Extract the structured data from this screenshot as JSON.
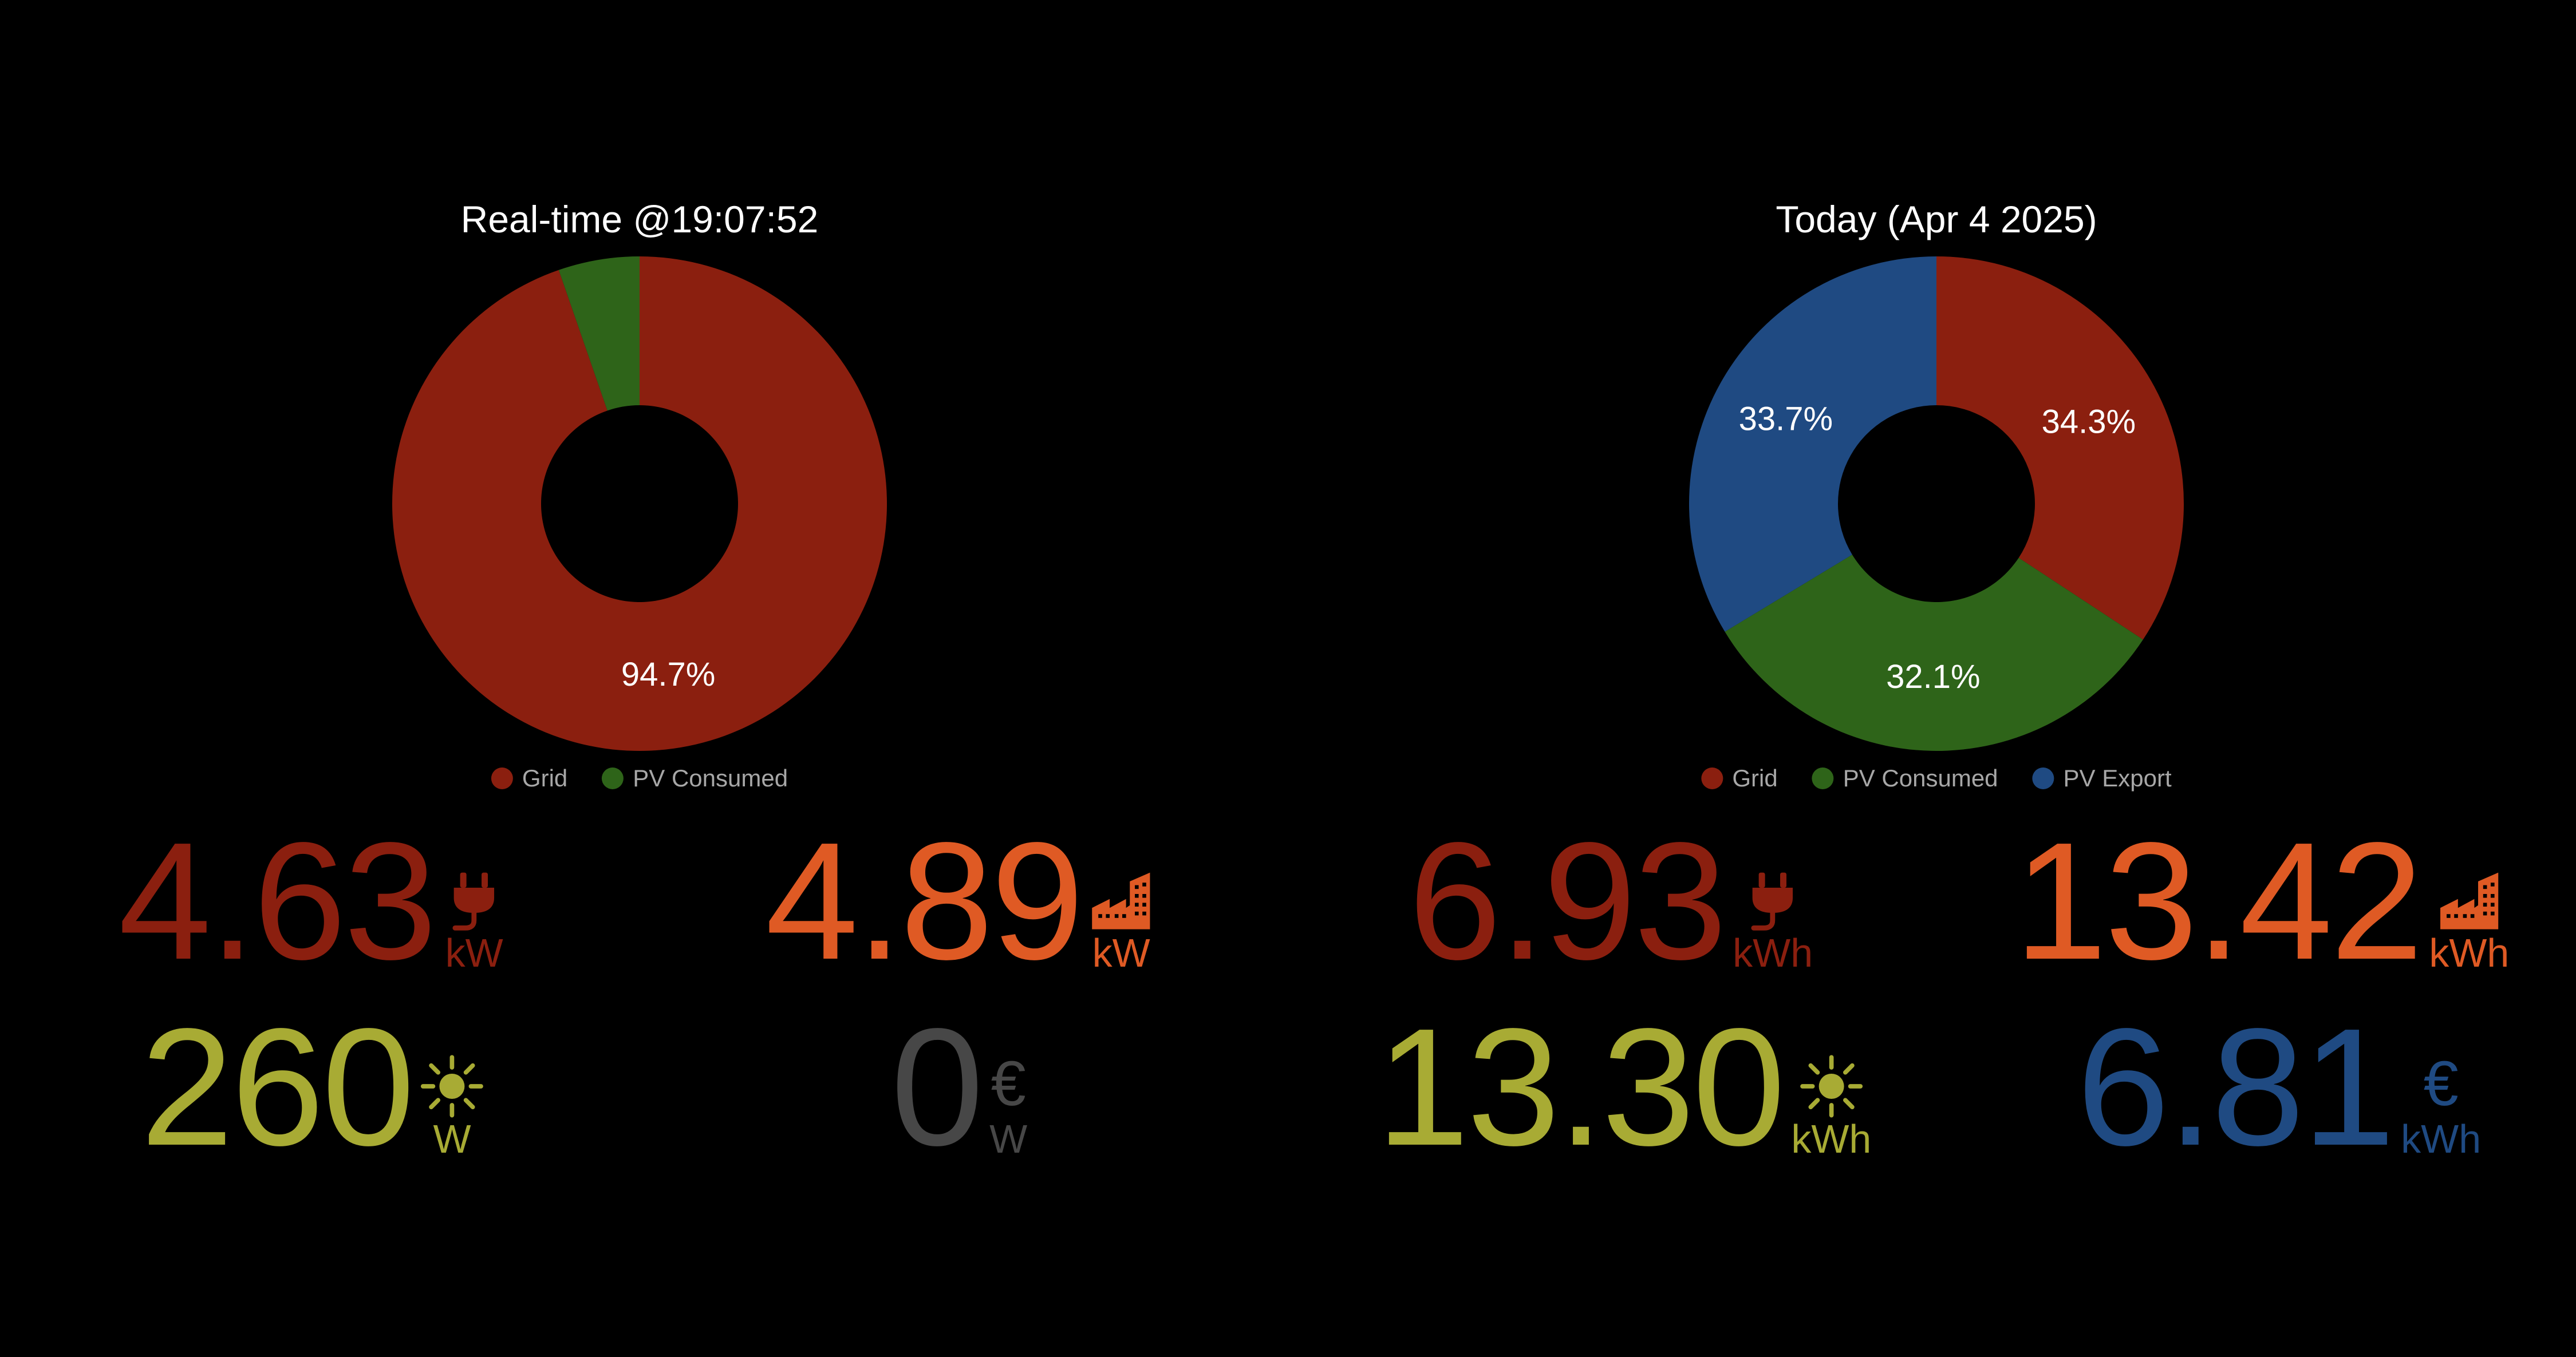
{
  "colors": {
    "grid": "#8b1f0f",
    "pv_consumed": "#2e6419",
    "pv_export": "#1f4a82",
    "consumption": "#df5a24",
    "solar": "#a8ab34",
    "neutral": "#474747"
  },
  "realtime": {
    "title": "Real-time @19:07:52",
    "legend": [
      {
        "label": "Grid",
        "color": "#8b1f0f"
      },
      {
        "label": "PV Consumed",
        "color": "#2e6419"
      }
    ],
    "metrics": {
      "grid": {
        "value": "4.63",
        "unit": "kW",
        "icon": "plug-icon",
        "color": "#8b1f0f"
      },
      "consumption": {
        "value": "4.89",
        "unit": "kW",
        "icon": "building-icon",
        "color": "#df5a24"
      },
      "solar": {
        "value": "260",
        "unit": "W",
        "icon": "sun-icon",
        "color": "#a8ab34"
      },
      "export": {
        "value": "0",
        "unit": "W",
        "icon": "euro-icon",
        "symbol": "€",
        "color": "#474747"
      }
    }
  },
  "today": {
    "title": "Today (Apr 4 2025)",
    "legend": [
      {
        "label": "Grid",
        "color": "#8b1f0f"
      },
      {
        "label": "PV Consumed",
        "color": "#2e6419"
      },
      {
        "label": "PV Export",
        "color": "#1f4a82"
      }
    ],
    "metrics": {
      "grid": {
        "value": "6.93",
        "unit": "kWh",
        "icon": "plug-icon",
        "color": "#8b1f0f"
      },
      "consumption": {
        "value": "13.42",
        "unit": "kWh",
        "icon": "building-icon",
        "color": "#df5a24"
      },
      "solar": {
        "value": "13.30",
        "unit": "kWh",
        "icon": "sun-icon",
        "color": "#a8ab34"
      },
      "export": {
        "value": "6.81",
        "unit": "kWh",
        "icon": "euro-icon",
        "symbol": "€",
        "color": "#1f4a82"
      }
    }
  },
  "chart_data": [
    {
      "type": "pie",
      "title": "Real-time @19:07:52",
      "categories": [
        "Grid",
        "PV Consumed"
      ],
      "values": [
        94.7,
        5.3
      ],
      "labels": [
        "94.7%",
        ""
      ],
      "colors": [
        "#8b1f0f",
        "#2e6419"
      ],
      "legend": "bottom"
    },
    {
      "type": "pie",
      "title": "Today (Apr 4 2025)",
      "categories": [
        "Grid",
        "PV Consumed",
        "PV Export"
      ],
      "values": [
        34.3,
        32.1,
        33.7
      ],
      "labels": [
        "34.3%",
        "32.1%",
        "33.7%"
      ],
      "colors": [
        "#8b1f0f",
        "#2e6419",
        "#1f4a82"
      ],
      "legend": "bottom"
    }
  ]
}
